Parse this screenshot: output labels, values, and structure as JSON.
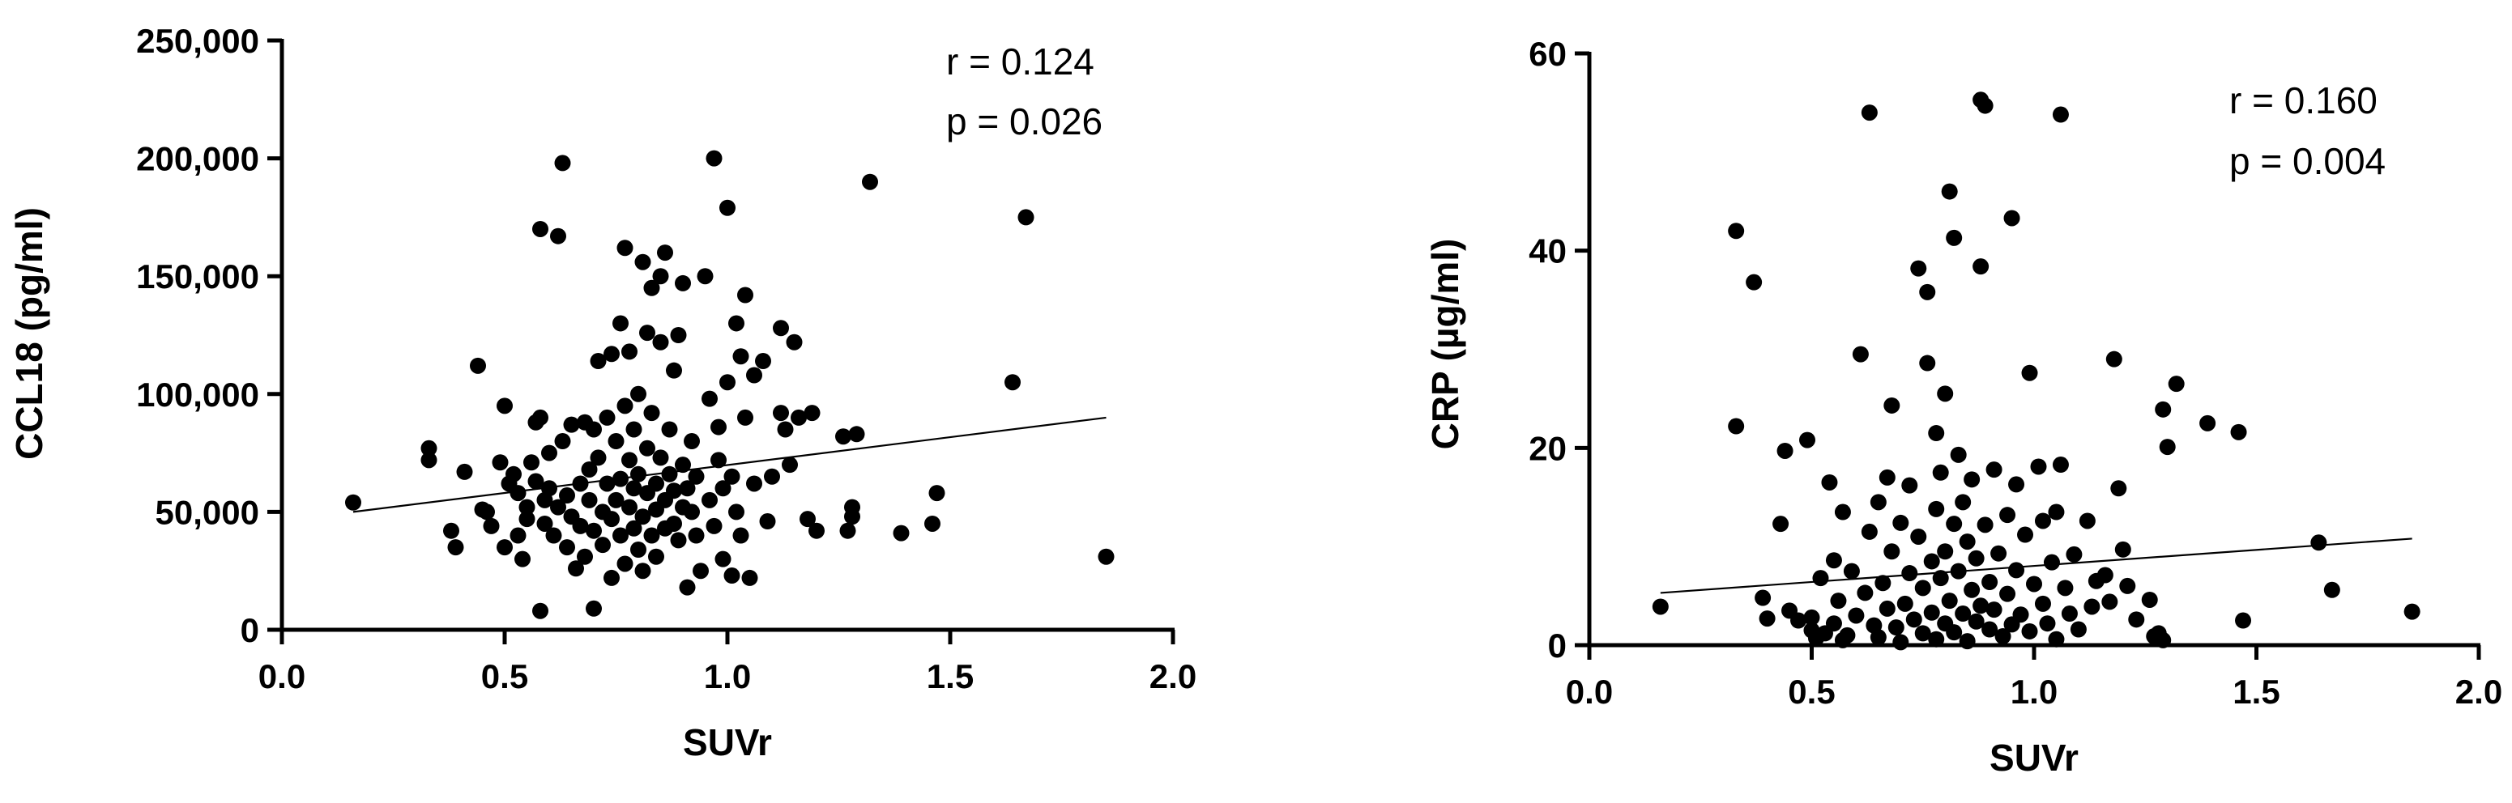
{
  "chart_data": [
    {
      "type": "scatter",
      "title": "",
      "xlabel": "SUVr",
      "ylabel": "CCL18 (pg/ml)",
      "xlim": [
        0,
        2
      ],
      "ylim": [
        0,
        250000
      ],
      "xticks": [
        0,
        0.5,
        1,
        1.5,
        2
      ],
      "xtick_labels": [
        "0.0",
        "0.5",
        "1.0",
        "1.5",
        "2.0"
      ],
      "yticks": [
        0,
        50000,
        100000,
        150000,
        200000,
        250000
      ],
      "ytick_labels": [
        "0",
        "50,000",
        "100,000",
        "150,000",
        "200,000",
        "250,000"
      ],
      "stats": [
        "r = 0.124",
        "p = 0.026"
      ],
      "fit_line": [
        [
          0.16,
          50000
        ],
        [
          1.85,
          90000
        ]
      ],
      "points": [
        [
          0.16,
          54000
        ],
        [
          0.33,
          77000
        ],
        [
          0.33,
          72000
        ],
        [
          0.38,
          42000
        ],
        [
          0.39,
          35000
        ],
        [
          0.41,
          67000
        ],
        [
          0.44,
          112000
        ],
        [
          0.45,
          51000
        ],
        [
          0.46,
          50000
        ],
        [
          0.47,
          44000
        ],
        [
          0.49,
          71000
        ],
        [
          0.5,
          95000
        ],
        [
          0.5,
          35000
        ],
        [
          0.51,
          62000
        ],
        [
          0.52,
          66000
        ],
        [
          0.53,
          58000
        ],
        [
          0.53,
          40000
        ],
        [
          0.54,
          30000
        ],
        [
          0.55,
          52000
        ],
        [
          0.55,
          47000
        ],
        [
          0.56,
          71000
        ],
        [
          0.57,
          88000
        ],
        [
          0.57,
          63000
        ],
        [
          0.58,
          90000
        ],
        [
          0.58,
          8000
        ],
        [
          0.58,
          170000
        ],
        [
          0.59,
          55000
        ],
        [
          0.59,
          45000
        ],
        [
          0.6,
          75000
        ],
        [
          0.6,
          60000
        ],
        [
          0.61,
          40000
        ],
        [
          0.62,
          167000
        ],
        [
          0.62,
          52000
        ],
        [
          0.63,
          198000
        ],
        [
          0.63,
          80000
        ],
        [
          0.64,
          35000
        ],
        [
          0.64,
          57000
        ],
        [
          0.65,
          87000
        ],
        [
          0.65,
          48000
        ],
        [
          0.66,
          26000
        ],
        [
          0.67,
          62000
        ],
        [
          0.67,
          44000
        ],
        [
          0.68,
          88000
        ],
        [
          0.68,
          31000
        ],
        [
          0.69,
          55000
        ],
        [
          0.69,
          68000
        ],
        [
          0.7,
          9000
        ],
        [
          0.7,
          85000
        ],
        [
          0.7,
          42000
        ],
        [
          0.71,
          73000
        ],
        [
          0.71,
          114000
        ],
        [
          0.72,
          50000
        ],
        [
          0.72,
          36000
        ],
        [
          0.73,
          90000
        ],
        [
          0.73,
          62000
        ],
        [
          0.74,
          22000
        ],
        [
          0.74,
          117000
        ],
        [
          0.74,
          47000
        ],
        [
          0.75,
          80000
        ],
        [
          0.75,
          55000
        ],
        [
          0.76,
          130000
        ],
        [
          0.76,
          40000
        ],
        [
          0.76,
          64000
        ],
        [
          0.77,
          162000
        ],
        [
          0.77,
          95000
        ],
        [
          0.77,
          28000
        ],
        [
          0.78,
          52000
        ],
        [
          0.78,
          72000
        ],
        [
          0.78,
          118000
        ],
        [
          0.79,
          43000
        ],
        [
          0.79,
          60000
        ],
        [
          0.79,
          85000
        ],
        [
          0.8,
          34000
        ],
        [
          0.8,
          100000
        ],
        [
          0.8,
          66000
        ],
        [
          0.81,
          156000
        ],
        [
          0.81,
          48000
        ],
        [
          0.81,
          25000
        ],
        [
          0.82,
          77000
        ],
        [
          0.82,
          58000
        ],
        [
          0.82,
          126000
        ],
        [
          0.83,
          40000
        ],
        [
          0.83,
          92000
        ],
        [
          0.83,
          145000
        ],
        [
          0.84,
          62000
        ],
        [
          0.84,
          51000
        ],
        [
          0.84,
          31000
        ],
        [
          0.85,
          122000
        ],
        [
          0.85,
          73000
        ],
        [
          0.85,
          150000
        ],
        [
          0.86,
          55000
        ],
        [
          0.86,
          43000
        ],
        [
          0.86,
          160000
        ],
        [
          0.87,
          85000
        ],
        [
          0.87,
          66000
        ],
        [
          0.88,
          45000
        ],
        [
          0.88,
          110000
        ],
        [
          0.88,
          59000
        ],
        [
          0.89,
          125000
        ],
        [
          0.89,
          38000
        ],
        [
          0.9,
          52000
        ],
        [
          0.9,
          70000
        ],
        [
          0.9,
          147000
        ],
        [
          0.91,
          18000
        ],
        [
          0.91,
          60000
        ],
        [
          0.92,
          80000
        ],
        [
          0.92,
          50000
        ],
        [
          0.93,
          40000
        ],
        [
          0.93,
          65000
        ],
        [
          0.94,
          25000
        ],
        [
          0.95,
          150000
        ],
        [
          0.96,
          98000
        ],
        [
          0.96,
          55000
        ],
        [
          0.97,
          200000
        ],
        [
          0.97,
          44000
        ],
        [
          0.98,
          86000
        ],
        [
          0.98,
          72000
        ],
        [
          0.99,
          60000
        ],
        [
          0.99,
          30000
        ],
        [
          1.0,
          179000
        ],
        [
          1.0,
          105000
        ],
        [
          1.01,
          65000
        ],
        [
          1.01,
          23000
        ],
        [
          1.02,
          50000
        ],
        [
          1.02,
          130000
        ],
        [
          1.03,
          116000
        ],
        [
          1.03,
          40000
        ],
        [
          1.04,
          142000
        ],
        [
          1.04,
          90000
        ],
        [
          1.05,
          22000
        ],
        [
          1.06,
          108000
        ],
        [
          1.06,
          62000
        ],
        [
          1.08,
          114000
        ],
        [
          1.09,
          46000
        ],
        [
          1.1,
          65000
        ],
        [
          1.12,
          92000
        ],
        [
          1.12,
          128000
        ],
        [
          1.13,
          85000
        ],
        [
          1.14,
          70000
        ],
        [
          1.15,
          122000
        ],
        [
          1.16,
          90000
        ],
        [
          1.18,
          47000
        ],
        [
          1.19,
          92000
        ],
        [
          1.2,
          42000
        ],
        [
          1.26,
          82000
        ],
        [
          1.27,
          42000
        ],
        [
          1.28,
          52000
        ],
        [
          1.28,
          48000
        ],
        [
          1.29,
          83000
        ],
        [
          1.32,
          190000
        ],
        [
          1.39,
          41000
        ],
        [
          1.46,
          45000
        ],
        [
          1.47,
          58000
        ],
        [
          1.64,
          105000
        ],
        [
          1.67,
          175000
        ],
        [
          1.85,
          31000
        ]
      ]
    },
    {
      "type": "scatter",
      "title": "",
      "xlabel": "SUVr",
      "ylabel": "CRP (µg/ml)",
      "xlim": [
        0,
        2
      ],
      "ylim": [
        0,
        60
      ],
      "xticks": [
        0,
        0.5,
        1,
        1.5,
        2
      ],
      "xtick_labels": [
        "0.0",
        "0.5",
        "1.0",
        "1.5",
        "2.0"
      ],
      "yticks": [
        0,
        20,
        40,
        60
      ],
      "ytick_labels": [
        "0",
        "20",
        "40",
        "60"
      ],
      "stats": [
        "r = 0.160",
        "p = 0.004"
      ],
      "fit_line": [
        [
          0.16,
          5.3
        ],
        [
          1.85,
          10.8
        ]
      ],
      "points": [
        [
          0.16,
          3.9
        ],
        [
          0.33,
          42
        ],
        [
          0.33,
          22.2
        ],
        [
          0.37,
          36.8
        ],
        [
          0.39,
          4.8
        ],
        [
          0.4,
          2.7
        ],
        [
          0.43,
          12.3
        ],
        [
          0.44,
          19.7
        ],
        [
          0.45,
          3.5
        ],
        [
          0.47,
          2.5
        ],
        [
          0.49,
          20.8
        ],
        [
          0.5,
          1.5
        ],
        [
          0.5,
          2.8
        ],
        [
          0.51,
          0.7
        ],
        [
          0.52,
          6.8
        ],
        [
          0.53,
          1.2
        ],
        [
          0.54,
          16.5
        ],
        [
          0.55,
          8.6
        ],
        [
          0.55,
          2.2
        ],
        [
          0.56,
          4.5
        ],
        [
          0.57,
          13.5
        ],
        [
          0.57,
          0.5
        ],
        [
          0.58,
          1.0
        ],
        [
          0.59,
          7.5
        ],
        [
          0.6,
          3.0
        ],
        [
          0.61,
          29.5
        ],
        [
          0.62,
          5.3
        ],
        [
          0.63,
          54
        ],
        [
          0.63,
          11.5
        ],
        [
          0.64,
          2.0
        ],
        [
          0.65,
          14.5
        ],
        [
          0.65,
          0.8
        ],
        [
          0.66,
          6.3
        ],
        [
          0.67,
          17
        ],
        [
          0.67,
          3.7
        ],
        [
          0.68,
          24.3
        ],
        [
          0.68,
          9.5
        ],
        [
          0.69,
          1.8
        ],
        [
          0.7,
          0.3
        ],
        [
          0.7,
          12.4
        ],
        [
          0.71,
          4.2
        ],
        [
          0.72,
          16.2
        ],
        [
          0.72,
          7.3
        ],
        [
          0.73,
          2.6
        ],
        [
          0.74,
          38.2
        ],
        [
          0.74,
          11
        ],
        [
          0.75,
          1.2
        ],
        [
          0.75,
          5.8
        ],
        [
          0.76,
          35.8
        ],
        [
          0.76,
          28.6
        ],
        [
          0.77,
          8.5
        ],
        [
          0.77,
          3.3
        ],
        [
          0.78,
          21.5
        ],
        [
          0.78,
          13.8
        ],
        [
          0.78,
          0.6
        ],
        [
          0.79,
          6.8
        ],
        [
          0.79,
          17.5
        ],
        [
          0.8,
          25.5
        ],
        [
          0.8,
          2.2
        ],
        [
          0.8,
          9.5
        ],
        [
          0.81,
          46
        ],
        [
          0.81,
          4.5
        ],
        [
          0.82,
          41.3
        ],
        [
          0.82,
          12.3
        ],
        [
          0.82,
          1.3
        ],
        [
          0.83,
          19.3
        ],
        [
          0.83,
          7.5
        ],
        [
          0.84,
          14.5
        ],
        [
          0.84,
          3.2
        ],
        [
          0.85,
          10.5
        ],
        [
          0.85,
          0.4
        ],
        [
          0.86,
          5.6
        ],
        [
          0.86,
          16.8
        ],
        [
          0.87,
          2.4
        ],
        [
          0.87,
          8.8
        ],
        [
          0.88,
          55.3
        ],
        [
          0.88,
          38.4
        ],
        [
          0.88,
          4.0
        ],
        [
          0.89,
          54.7
        ],
        [
          0.89,
          12.2
        ],
        [
          0.9,
          1.6
        ],
        [
          0.9,
          6.4
        ],
        [
          0.91,
          17.8
        ],
        [
          0.91,
          3.6
        ],
        [
          0.92,
          9.3
        ],
        [
          0.93,
          0.9
        ],
        [
          0.94,
          13.2
        ],
        [
          0.94,
          5.2
        ],
        [
          0.95,
          43.3
        ],
        [
          0.95,
          2.1
        ],
        [
          0.96,
          16.3
        ],
        [
          0.96,
          7.6
        ],
        [
          0.97,
          3.1
        ],
        [
          0.98,
          11.2
        ],
        [
          0.99,
          27.6
        ],
        [
          0.99,
          1.4
        ],
        [
          1.0,
          6.2
        ],
        [
          1.01,
          18.1
        ],
        [
          1.02,
          4.2
        ],
        [
          1.02,
          12.6
        ],
        [
          1.03,
          2.2
        ],
        [
          1.04,
          8.4
        ],
        [
          1.05,
          13.5
        ],
        [
          1.05,
          0.6
        ],
        [
          1.06,
          53.8
        ],
        [
          1.06,
          18.3
        ],
        [
          1.07,
          5.8
        ],
        [
          1.08,
          3.2
        ],
        [
          1.09,
          9.2
        ],
        [
          1.1,
          1.6
        ],
        [
          1.12,
          12.6
        ],
        [
          1.13,
          3.9
        ],
        [
          1.14,
          6.5
        ],
        [
          1.16,
          7.1
        ],
        [
          1.17,
          4.4
        ],
        [
          1.18,
          29
        ],
        [
          1.19,
          15.9
        ],
        [
          1.2,
          9.7
        ],
        [
          1.21,
          6.0
        ],
        [
          1.23,
          2.6
        ],
        [
          1.26,
          4.6
        ],
        [
          1.27,
          0.9
        ],
        [
          1.28,
          1.2
        ],
        [
          1.29,
          23.9
        ],
        [
          1.29,
          0.5
        ],
        [
          1.3,
          20.1
        ],
        [
          1.32,
          26.5
        ],
        [
          1.39,
          22.5
        ],
        [
          1.46,
          21.6
        ],
        [
          1.47,
          2.5
        ],
        [
          1.64,
          10.4
        ],
        [
          1.67,
          5.6
        ],
        [
          1.85,
          3.4
        ]
      ]
    }
  ]
}
